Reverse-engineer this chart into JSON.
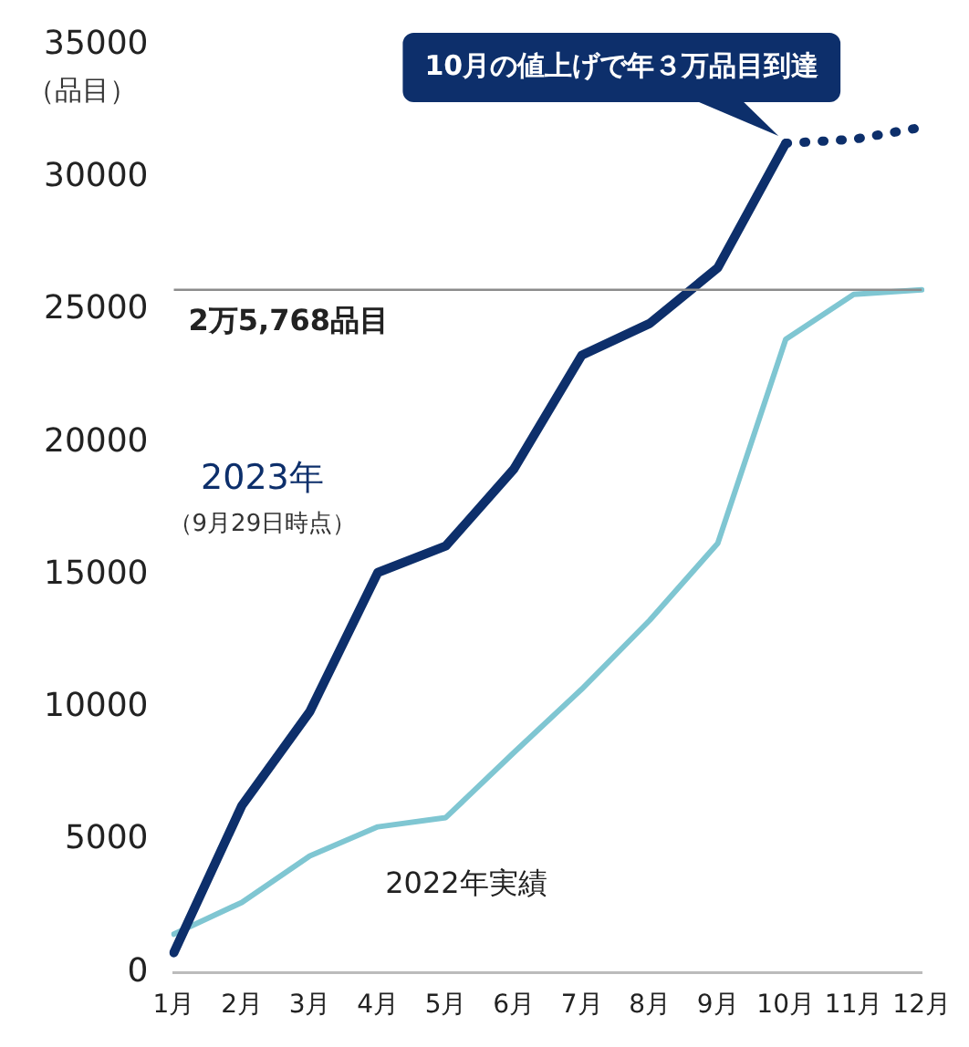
{
  "chart_data": {
    "type": "line",
    "ylabel": "（品目）",
    "categories": [
      "1月",
      "2月",
      "3月",
      "4月",
      "5月",
      "6月",
      "7月",
      "8月",
      "9月",
      "10月",
      "11月",
      "12月"
    ],
    "series": [
      {
        "name": "2023年",
        "color": "#0d2f6b",
        "values": [
          750,
          6300,
          9850,
          15100,
          16100,
          19000,
          23300,
          24500,
          26600,
          31300,
          null,
          null
        ]
      },
      {
        "color": "#0d2f6b",
        "line_style": "dotted",
        "values": [
          null,
          null,
          null,
          null,
          null,
          null,
          null,
          null,
          null,
          31300,
          31450,
          31900
        ]
      },
      {
        "name": "2022年実績",
        "color": "#7fc6d2",
        "values": [
          1450,
          2650,
          4400,
          5500,
          5850,
          8300,
          10700,
          13300,
          16200,
          23900,
          25600,
          25768
        ]
      }
    ],
    "ylim": [
      0,
      35000
    ],
    "yticks": [
      0,
      5000,
      10000,
      15000,
      20000,
      25000,
      30000,
      35000
    ],
    "ref_lines": [
      {
        "axis": "y",
        "value": 25768,
        "label": "2万5,768品目",
        "color": "#8c8c8c"
      }
    ],
    "annotations": [
      {
        "text": "10月の値上げで年３万品目到達",
        "x": "10月",
        "y": 31300
      },
      "（9月29日時点）"
    ],
    "grid": false,
    "legend": false,
    "marker": "none",
    "line_style": "solid"
  }
}
